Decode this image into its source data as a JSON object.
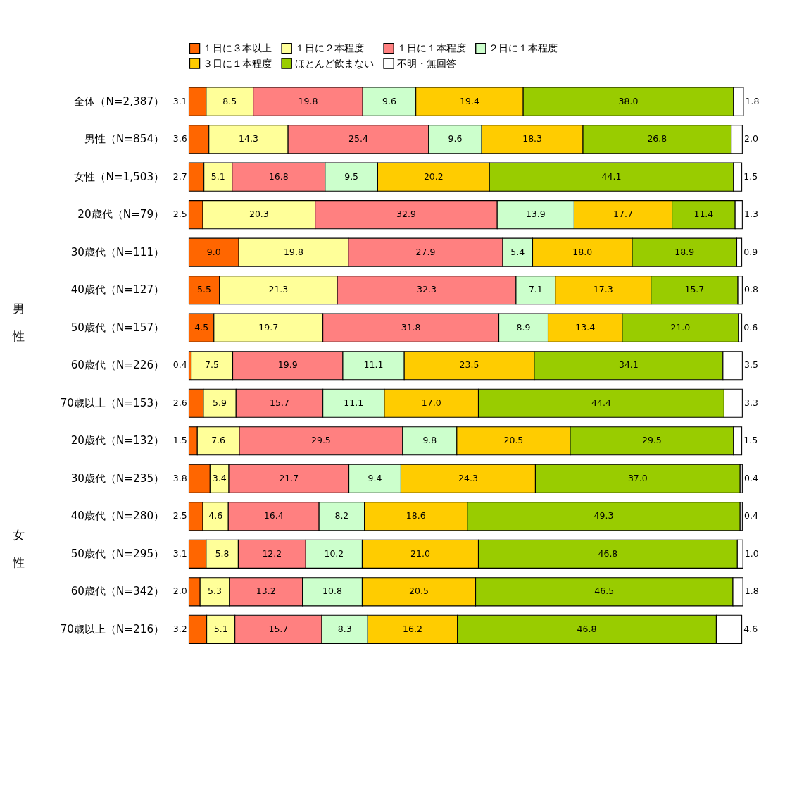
{
  "chart_data": {
    "type": "bar",
    "orientation": "horizontal",
    "stacked": true,
    "legend": "top",
    "categories": [
      "全体（N=2,387）",
      "男性（N=854）",
      "女性（N=1,503）",
      "20歳代（N=79）",
      "30歳代（N=111）",
      "40歳代（N=127）",
      "50歳代（N=157）",
      "60歳代（N=226）",
      "70歳以上（N=153）",
      "20歳代（N=132）",
      "30歳代（N=235）",
      "40歳代（N=280）",
      "50歳代（N=295）",
      "60歳代（N=342）",
      "70歳以上（N=216）"
    ],
    "series": [
      {
        "name": "１日に３本以上",
        "color": "#ff6600",
        "values": [
          3.1,
          3.6,
          2.7,
          2.5,
          9.0,
          5.5,
          4.5,
          0.4,
          2.6,
          1.5,
          3.8,
          2.5,
          3.1,
          2.0,
          3.2
        ],
        "value_labels": [
          "3.1",
          "3.6",
          "2.7",
          "2.5",
          "9.0",
          "5.5",
          "4.5",
          "0.4",
          "2.6",
          "1.5",
          "3.8",
          "2.5",
          "3.1",
          "2.0",
          "3.2"
        ]
      },
      {
        "name": "１日に２本程度",
        "color": "#ffff99",
        "values": [
          8.5,
          14.3,
          5.1,
          20.3,
          19.8,
          21.3,
          19.7,
          7.5,
          5.9,
          7.6,
          3.4,
          4.6,
          5.8,
          5.3,
          5.1
        ],
        "value_labels": [
          "8.5",
          "14.3",
          "5.1",
          "20.3",
          "19.8",
          "21.3",
          "19.7",
          "7.5",
          "5.9",
          "7.6",
          "3.4",
          "4.6",
          "5.8",
          "5.3",
          "5.1"
        ]
      },
      {
        "name": "１日に１本程度",
        "color": "#ff8080",
        "values": [
          19.8,
          25.4,
          16.8,
          32.9,
          27.9,
          32.3,
          31.8,
          19.9,
          15.7,
          29.5,
          21.7,
          16.4,
          12.2,
          13.2,
          15.7
        ],
        "value_labels": [
          "19.8",
          "25.4",
          "16.8",
          "32.9",
          "27.9",
          "32.3",
          "31.8",
          "19.9",
          "15.7",
          "29.5",
          "21.7",
          "16.4",
          "12.2",
          "13.2",
          "15.7"
        ]
      },
      {
        "name": "２日に１本程度",
        "color": "#ccffcc",
        "values": [
          9.6,
          9.6,
          9.5,
          13.9,
          5.4,
          7.1,
          8.9,
          11.1,
          11.1,
          9.8,
          9.4,
          8.2,
          10.2,
          10.8,
          8.3
        ],
        "value_labels": [
          "9.6",
          "9.6",
          "9.5",
          "13.9",
          "5.4",
          "7.1",
          "8.9",
          "11.1",
          "11.1",
          "9.8",
          "9.4",
          "8.2",
          "10.2",
          "10.8",
          "8.3"
        ]
      },
      {
        "name": "３日に１本程度",
        "color": "#ffcc00",
        "values": [
          19.4,
          18.3,
          20.2,
          17.7,
          18.0,
          17.3,
          13.4,
          23.5,
          17.0,
          20.5,
          24.3,
          18.6,
          21.0,
          20.5,
          16.2
        ],
        "value_labels": [
          "19.4",
          "18.3",
          "20.2",
          "17.7",
          "18.0",
          "17.3",
          "13.4",
          "23.5",
          "17.0",
          "20.5",
          "24.3",
          "18.6",
          "21.0",
          "20.5",
          "16.2"
        ]
      },
      {
        "name": "ほとんど飲まない",
        "color": "#99cc00",
        "values": [
          38.0,
          26.8,
          44.1,
          11.4,
          18.9,
          15.7,
          21.0,
          34.1,
          44.4,
          29.5,
          37.0,
          49.3,
          46.8,
          46.5,
          46.8
        ],
        "value_labels": [
          "38.0",
          "26.8",
          "44.1",
          "11.4",
          "18.9",
          "15.7",
          "21.0",
          "34.1",
          "44.4",
          "29.5",
          "37.0",
          "49.3",
          "46.8",
          "46.5",
          "46.8"
        ]
      },
      {
        "name": "不明・無回答",
        "color": "#ffffff",
        "values": [
          1.8,
          2.0,
          1.5,
          1.3,
          0.9,
          0.8,
          0.6,
          3.5,
          3.3,
          1.5,
          0.4,
          0.4,
          1.0,
          1.8,
          4.6
        ],
        "value_labels": [
          "1.8",
          "2.0",
          "1.5",
          "1.3",
          "0.9",
          "0.8",
          "0.6",
          "3.5",
          "3.3",
          "1.5",
          "0.4",
          "0.4",
          "1.0",
          "1.8",
          "4.6"
        ]
      }
    ],
    "annotations": [
      "男性",
      "女性"
    ]
  }
}
